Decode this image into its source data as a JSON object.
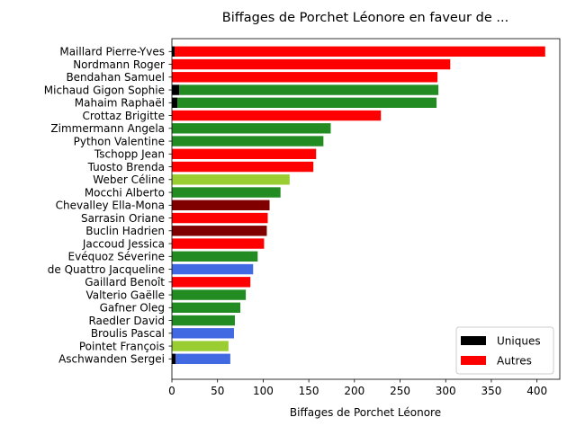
{
  "chart_data": {
    "type": "bar",
    "orientation": "horizontal",
    "title": "Biffages de Porchet Léonore en faveur de ...",
    "xlabel": "Biffages de Porchet Léonore",
    "ylabel": "",
    "xlim": [
      0,
      425
    ],
    "xticks": [
      "0",
      "50",
      "100",
      "150",
      "200",
      "250",
      "300",
      "350",
      "400"
    ],
    "grid": false,
    "legend_position": "bottom-right",
    "legend": [
      {
        "name": "Uniques",
        "color": "#000000"
      },
      {
        "name": "Autres",
        "color": "#ff0000"
      }
    ],
    "categories": [
      "Maillard Pierre-Yves",
      "Nordmann Roger",
      "Bendahan Samuel",
      "Michaud Gigon Sophie",
      "Mahaim Raphaël",
      "Crottaz Brigitte",
      "Zimmermann Angela",
      "Python Valentine",
      "Tschopp Jean",
      "Tuosto Brenda",
      "Weber Céline",
      "Mocchi Alberto",
      "Chevalley Ella-Mona",
      "Sarrasin Oriane",
      "Buclin Hadrien",
      "Jaccoud Jessica",
      "Evéquoz Séverine",
      "de Quattro Jacqueline",
      "Gaillard Benoît",
      "Valterio Gaëlle",
      "Gafner Oleg",
      "Raedler David",
      "Broulis Pascal",
      "Pointet François",
      "Aschwanden Sergei"
    ],
    "series": [
      {
        "name": "Uniques",
        "values": [
          3,
          0,
          0,
          8,
          6,
          0,
          0,
          0,
          0,
          0,
          0,
          0,
          0,
          0,
          0,
          0,
          0,
          0,
          0,
          0,
          0,
          0,
          0,
          0,
          4
        ]
      },
      {
        "name": "Autres",
        "values": [
          406,
          305,
          291,
          284,
          284,
          229,
          174,
          166,
          158,
          155,
          129,
          119,
          107,
          105,
          104,
          101,
          94,
          89,
          86,
          81,
          75,
          69,
          68,
          62,
          60
        ]
      }
    ],
    "bar_colors": [
      "#ff0000",
      "#ff0000",
      "#ff0000",
      "#228b22",
      "#228b22",
      "#ff0000",
      "#228b22",
      "#228b22",
      "#ff0000",
      "#ff0000",
      "#9acd32",
      "#228b22",
      "#800000",
      "#ff0000",
      "#800000",
      "#ff0000",
      "#228b22",
      "#4169e1",
      "#ff0000",
      "#228b22",
      "#228b22",
      "#228b22",
      "#4169e1",
      "#9acd32",
      "#4169e1"
    ],
    "uniques_color": "#000000"
  }
}
